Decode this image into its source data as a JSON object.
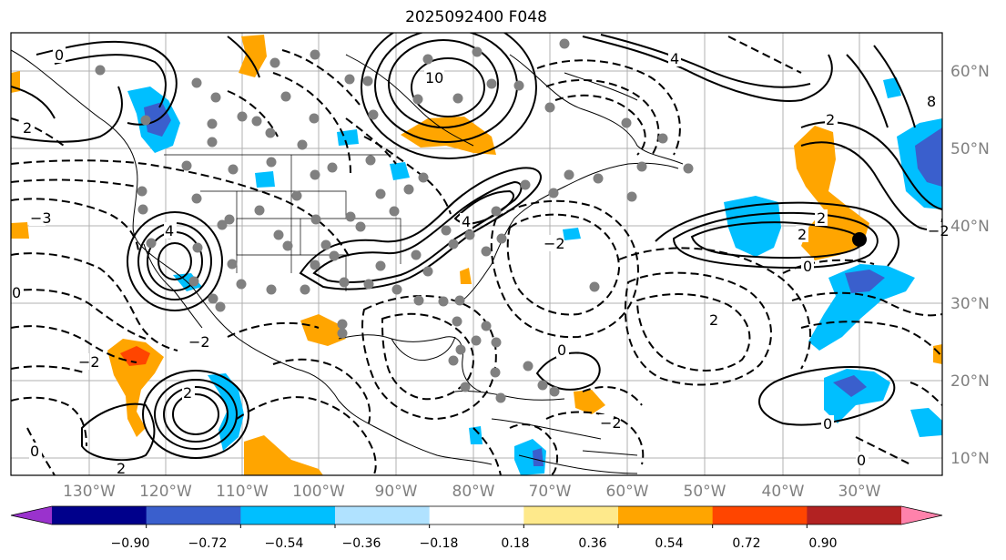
{
  "title": "2025092400 F048",
  "longitude_labels": [
    "130°W",
    "120°W",
    "110°W",
    "100°W",
    "90°W",
    "80°W",
    "70°W",
    "60°W",
    "50°W",
    "40°W",
    "30°W"
  ],
  "latitude_labels": [
    "60°N",
    "50°N",
    "40°N",
    "30°N",
    "20°N",
    "10°N"
  ],
  "colorbar": {
    "colors": [
      "#9a32cd",
      "#00008b",
      "#3a5fcd",
      "#00bfff",
      "#b0e2ff",
      "#ffffff",
      "#fee98b",
      "#ffa500",
      "#ff4500",
      "#b22222",
      "#ff82ab"
    ],
    "tick_labels": [
      "−0.90",
      "−0.72",
      "−0.54",
      "−0.36",
      "−0.18",
      "0.18",
      "0.36",
      "0.54",
      "0.72",
      "0.90"
    ]
  },
  "contour_labels": [
    "0",
    "2",
    "2",
    "4",
    "−2",
    "−2",
    "−3",
    "4",
    "0",
    "2",
    "−2",
    "2",
    "0",
    "2",
    "4",
    "10",
    "8",
    "2",
    "−2",
    "0",
    "0",
    "2",
    "0",
    "−2",
    "0"
  ],
  "marker": "black-dot"
}
